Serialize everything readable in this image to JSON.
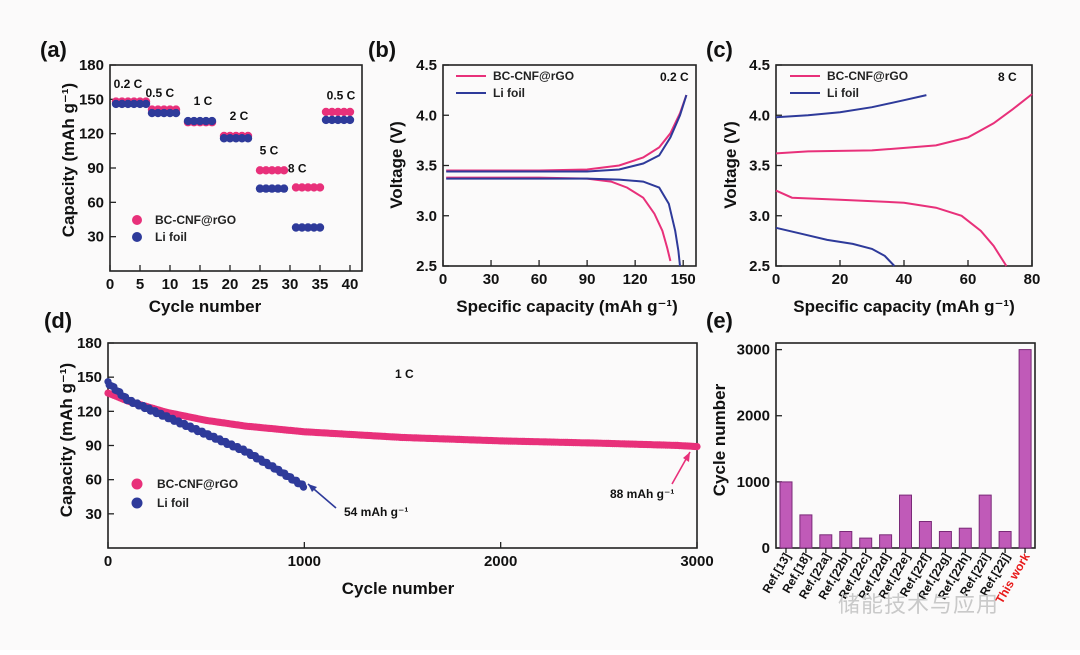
{
  "colors": {
    "bc": "#e8307a",
    "li": "#2e3a9a",
    "bar": "#c05ab8",
    "bar_edge": "#7a2a78",
    "red": "#e81818"
  },
  "watermark": "储能技术与应用",
  "chart_data": [
    {
      "id": "a",
      "type": "scatter",
      "letter": "(a)",
      "xlabel": "Cycle number",
      "ylabel": "Capacity (mAh g⁻¹)",
      "xlim": [
        0,
        42
      ],
      "ylim": [
        0,
        180
      ],
      "xticks": [
        0,
        5,
        10,
        15,
        20,
        25,
        30,
        35,
        40
      ],
      "yticks": [
        30,
        60,
        90,
        120,
        150,
        180
      ],
      "rate_labels": [
        {
          "text": "0.2 C",
          "x": 3,
          "y": 160
        },
        {
          "text": "0.5 C",
          "x": 8.3,
          "y": 152
        },
        {
          "text": "1 C",
          "x": 15.5,
          "y": 145
        },
        {
          "text": "2 C",
          "x": 21.5,
          "y": 132
        },
        {
          "text": "5 C",
          "x": 26.5,
          "y": 102
        },
        {
          "text": "8 C",
          "x": 31.2,
          "y": 86
        },
        {
          "text": "0.5 C",
          "x": 38.5,
          "y": 150
        }
      ],
      "series": [
        {
          "name": "BC-CNF@rGO",
          "color": "#e8307a",
          "segments": [
            {
              "x0": 1,
              "x1": 6,
              "y": 148
            },
            {
              "x0": 7,
              "x1": 11,
              "y": 141
            },
            {
              "x0": 13,
              "x1": 17,
              "y": 130
            },
            {
              "x0": 19,
              "x1": 23,
              "y": 118
            },
            {
              "x0": 25,
              "x1": 29,
              "y": 88
            },
            {
              "x0": 31,
              "x1": 35,
              "y": 73
            },
            {
              "x0": 36,
              "x1": 40,
              "y": 139
            }
          ]
        },
        {
          "name": "Li foil",
          "color": "#2e3a9a",
          "segments": [
            {
              "x0": 1,
              "x1": 6,
              "y": 146
            },
            {
              "x0": 7,
              "x1": 11,
              "y": 138
            },
            {
              "x0": 13,
              "x1": 17,
              "y": 131
            },
            {
              "x0": 19,
              "x1": 23,
              "y": 116
            },
            {
              "x0": 25,
              "x1": 29,
              "y": 72
            },
            {
              "x0": 31,
              "x1": 35,
              "y": 38
            },
            {
              "x0": 36,
              "x1": 40,
              "y": 132
            }
          ]
        }
      ]
    },
    {
      "id": "b",
      "type": "line",
      "letter": "(b)",
      "annotation": "0.2 C",
      "xlabel": "Specific capacity (mAh g⁻¹)",
      "ylabel": "Voltage (V)",
      "xlim": [
        0,
        158
      ],
      "ylim": [
        2.5,
        4.5
      ],
      "xticks": [
        0,
        30,
        60,
        90,
        120,
        150
      ],
      "yticks": [
        2.5,
        3.0,
        3.5,
        4.0,
        4.5
      ],
      "series": [
        {
          "name": "BC-CNF@rGO",
          "color": "#e8307a",
          "curves": [
            [
              [
                2,
                3.45
              ],
              [
                30,
                3.45
              ],
              [
                60,
                3.45
              ],
              [
                90,
                3.46
              ],
              [
                110,
                3.5
              ],
              [
                125,
                3.58
              ],
              [
                135,
                3.68
              ],
              [
                142,
                3.82
              ],
              [
                148,
                4.02
              ],
              [
                152,
                4.2
              ]
            ],
            [
              [
                2,
                3.38
              ],
              [
                30,
                3.38
              ],
              [
                60,
                3.38
              ],
              [
                90,
                3.37
              ],
              [
                105,
                3.34
              ],
              [
                115,
                3.28
              ],
              [
                125,
                3.18
              ],
              [
                132,
                3.02
              ],
              [
                137,
                2.85
              ],
              [
                140,
                2.68
              ],
              [
                142,
                2.55
              ]
            ]
          ]
        },
        {
          "name": "Li foil",
          "color": "#2e3a9a",
          "curves": [
            [
              [
                2,
                3.44
              ],
              [
                30,
                3.44
              ],
              [
                60,
                3.44
              ],
              [
                90,
                3.44
              ],
              [
                110,
                3.46
              ],
              [
                125,
                3.52
              ],
              [
                135,
                3.6
              ],
              [
                142,
                3.78
              ],
              [
                148,
                4.0
              ],
              [
                152,
                4.2
              ]
            ],
            [
              [
                2,
                3.37
              ],
              [
                30,
                3.37
              ],
              [
                60,
                3.37
              ],
              [
                90,
                3.37
              ],
              [
                110,
                3.36
              ],
              [
                125,
                3.34
              ],
              [
                135,
                3.28
              ],
              [
                141,
                3.12
              ],
              [
                145,
                2.85
              ],
              [
                147,
                2.65
              ],
              [
                148,
                2.5
              ]
            ]
          ]
        }
      ]
    },
    {
      "id": "c",
      "type": "line",
      "letter": "(c)",
      "annotation": "8 C",
      "xlabel": "Specific capacity (mAh g⁻¹)",
      "ylabel": "Voltage (V)",
      "xlim": [
        0,
        80
      ],
      "ylim": [
        2.5,
        4.5
      ],
      "xticks": [
        0,
        20,
        40,
        60,
        80
      ],
      "yticks": [
        2.5,
        3.0,
        3.5,
        4.0,
        4.5
      ],
      "series": [
        {
          "name": "BC-CNF@rGO",
          "color": "#e8307a",
          "curves": [
            [
              [
                0,
                3.62
              ],
              [
                10,
                3.64
              ],
              [
                30,
                3.65
              ],
              [
                50,
                3.7
              ],
              [
                60,
                3.78
              ],
              [
                68,
                3.92
              ],
              [
                74,
                4.06
              ],
              [
                80,
                4.21
              ]
            ],
            [
              [
                0,
                3.25
              ],
              [
                5,
                3.18
              ],
              [
                20,
                3.16
              ],
              [
                40,
                3.13
              ],
              [
                50,
                3.08
              ],
              [
                58,
                3.0
              ],
              [
                64,
                2.85
              ],
              [
                68,
                2.7
              ],
              [
                72,
                2.5
              ]
            ]
          ]
        },
        {
          "name": "Li foil",
          "color": "#2e3a9a",
          "curves": [
            [
              [
                0,
                3.98
              ],
              [
                10,
                4.0
              ],
              [
                20,
                4.03
              ],
              [
                30,
                4.08
              ],
              [
                40,
                4.15
              ],
              [
                47,
                4.2
              ]
            ],
            [
              [
                0,
                2.88
              ],
              [
                8,
                2.82
              ],
              [
                16,
                2.76
              ],
              [
                24,
                2.72
              ],
              [
                30,
                2.67
              ],
              [
                34,
                2.6
              ],
              [
                37,
                2.5
              ]
            ]
          ]
        }
      ]
    },
    {
      "id": "d",
      "type": "scatter",
      "letter": "(d)",
      "annotation": "1 C",
      "xlabel": "Cycle number",
      "ylabel": "Capacity (mAh g⁻¹)",
      "xlim": [
        0,
        3000
      ],
      "ylim": [
        0,
        180
      ],
      "xticks": [
        0,
        1000,
        2000,
        3000
      ],
      "yticks": [
        30,
        60,
        90,
        120,
        150,
        180
      ],
      "callouts": [
        {
          "text": "54 mAh g⁻¹",
          "color": "#2e3a9a",
          "x": 1000,
          "y": 54
        },
        {
          "text": "88 mAh g⁻¹",
          "color": "#e8307a",
          "x": 2950,
          "y": 88
        }
      ],
      "series": [
        {
          "name": "BC-CNF@rGO",
          "color": "#e8307a",
          "points": [
            [
              0,
              135
            ],
            [
              100,
              128
            ],
            [
              300,
              118
            ],
            [
              500,
              111
            ],
            [
              700,
              106
            ],
            [
              1000,
              101
            ],
            [
              1500,
              96
            ],
            [
              2000,
              93
            ],
            [
              2500,
              91
            ],
            [
              2900,
              89
            ],
            [
              3000,
              88
            ]
          ]
        },
        {
          "name": "Li foil",
          "color": "#2e3a9a",
          "points": [
            [
              0,
              145
            ],
            [
              100,
              130
            ],
            [
              300,
              115
            ],
            [
              500,
              100
            ],
            [
              700,
              85
            ],
            [
              850,
              70
            ],
            [
              1000,
              54
            ]
          ]
        }
      ]
    },
    {
      "id": "e",
      "type": "bar",
      "letter": "(e)",
      "ylabel": "Cycle number",
      "ylim": [
        0,
        3100
      ],
      "yticks": [
        0,
        1000,
        2000,
        3000
      ],
      "categories": [
        "Ref.[13]",
        "Ref.[18]",
        "Ref.[22a]",
        "Ref.[22b]",
        "Ref.[22c]",
        "Ref.[22d]",
        "Ref.[22e]",
        "Ref.[22f]",
        "Ref.[22g]",
        "Ref.[22h]",
        "Ref.[22i]",
        "Ref.[22j]",
        "This work"
      ],
      "values": [
        1000,
        500,
        200,
        250,
        150,
        200,
        800,
        400,
        250,
        300,
        800,
        250,
        3000
      ]
    }
  ]
}
